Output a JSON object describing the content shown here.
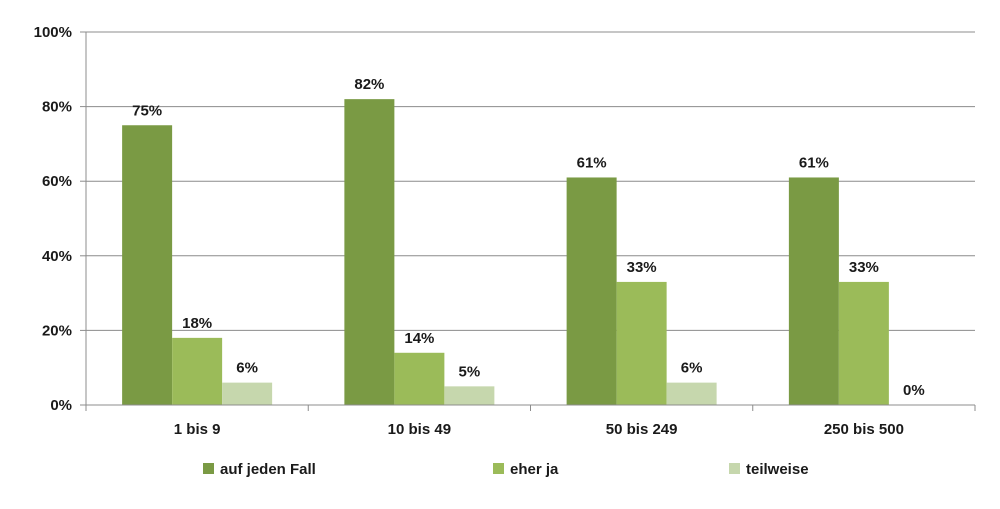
{
  "chart_data": {
    "type": "bar",
    "categories": [
      "1 bis 9",
      "10 bis 49",
      "50 bis 249",
      "250 bis 500"
    ],
    "series": [
      {
        "name": "auf jeden Fall",
        "values": [
          75,
          82,
          61,
          61
        ],
        "labels": [
          "75%",
          "82%",
          "61%",
          "61%"
        ],
        "color": "#7a9a44"
      },
      {
        "name": "eher ja",
        "values": [
          18,
          14,
          33,
          33
        ],
        "labels": [
          "18%",
          "14%",
          "33%",
          "33%"
        ],
        "color": "#9bbb59"
      },
      {
        "name": "teilweise",
        "values": [
          6,
          5,
          6,
          0
        ],
        "labels": [
          "6%",
          "5%",
          "6%",
          "0%"
        ],
        "color": "#c6d7ad"
      }
    ],
    "yticks": [
      "0%",
      "20%",
      "40%",
      "60%",
      "80%",
      "100%"
    ],
    "ylim": [
      0,
      100
    ],
    "grid": true,
    "legend_position": "bottom"
  }
}
